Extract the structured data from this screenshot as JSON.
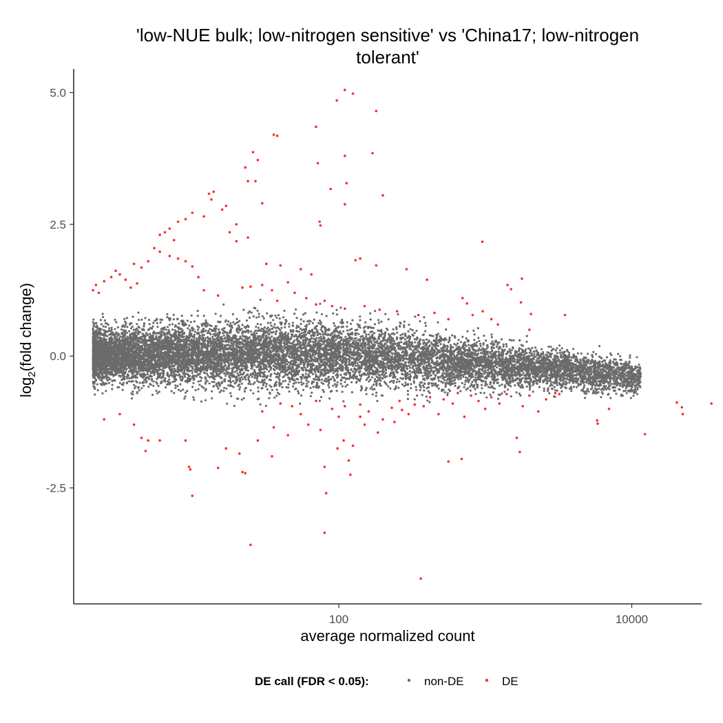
{
  "chart_data": {
    "type": "scatter",
    "title_line1": "'low-NUE bulk; low-nitrogen sensitive' vs 'China17; low-nitrogen",
    "title_line2": "tolerant'",
    "xlabel": "average normalized count",
    "ylabel_prefix": "log",
    "ylabel_sub": "2",
    "ylabel_suffix": "(fold change)",
    "x_scale": "log10",
    "xlim": [
      1.55,
      30000
    ],
    "ylim": [
      -4.7,
      5.45
    ],
    "x_ticks": [
      100,
      10000
    ],
    "x_tick_labels": [
      "100",
      "10000"
    ],
    "y_ticks": [
      5.0,
      2.5,
      0.0,
      -2.5
    ],
    "y_tick_labels": [
      "5.0",
      "2.5",
      "0.0",
      "-2.5"
    ],
    "grid": false,
    "legend": {
      "position": "bottom",
      "title": "DE call (FDR < 0.05):",
      "entries": [
        "non-DE",
        "DE"
      ]
    },
    "colors": {
      "non-DE": "#6b6b6b",
      "DE": "#ff2a2a"
    },
    "non_de_cloud": {
      "description_x_range": [
        2.1,
        11500
      ],
      "band_center": [
        [
          2.1,
          0.02
        ],
        [
          100,
          0.05
        ],
        [
          300,
          -0.05
        ],
        [
          2000,
          -0.2
        ],
        [
          11500,
          -0.4
        ]
      ],
      "band_halfwidth": [
        [
          2.1,
          0.55
        ],
        [
          30,
          0.75
        ],
        [
          300,
          0.65
        ],
        [
          2000,
          0.45
        ],
        [
          11500,
          0.35
        ]
      ],
      "approx_points": 12000
    },
    "de_points": {
      "series": [
        {
          "name": "DE",
          "points": [
            [
              110,
              5.05
            ],
            [
              125,
              4.98
            ],
            [
              97,
              4.85
            ],
            [
              180,
              4.65
            ],
            [
              70,
              4.35
            ],
            [
              36,
              4.2
            ],
            [
              38,
              4.18
            ],
            [
              26,
              3.87
            ],
            [
              110,
              3.8
            ],
            [
              170,
              3.85
            ],
            [
              28,
              3.72
            ],
            [
              72,
              3.66
            ],
            [
              23,
              3.58
            ],
            [
              113,
              3.28
            ],
            [
              24,
              3.32
            ],
            [
              27,
              3.32
            ],
            [
              88,
              3.17
            ],
            [
              13,
              3.08
            ],
            [
              14,
              3.12
            ],
            [
              200,
              3.05
            ],
            [
              13.5,
              2.97
            ],
            [
              17,
              2.85
            ],
            [
              16,
              2.78
            ],
            [
              30,
              2.9
            ],
            [
              110,
              2.88
            ],
            [
              10,
              2.72
            ],
            [
              9,
              2.6
            ],
            [
              12,
              2.65
            ],
            [
              8,
              2.55
            ],
            [
              74,
              2.55
            ],
            [
              75,
              2.48
            ],
            [
              20,
              2.5
            ],
            [
              7,
              2.42
            ],
            [
              6.5,
              2.35
            ],
            [
              18,
              2.35
            ],
            [
              6,
              2.3
            ],
            [
              7.5,
              2.2
            ],
            [
              955,
              2.17
            ],
            [
              20,
              2.18
            ],
            [
              24,
              2.25
            ],
            [
              5.5,
              2.05
            ],
            [
              6,
              1.98
            ],
            [
              7,
              1.9
            ],
            [
              8,
              1.85
            ],
            [
              9,
              1.8
            ],
            [
              10,
              1.7
            ],
            [
              5,
              1.8
            ],
            [
              4,
              1.75
            ],
            [
              4.5,
              1.68
            ],
            [
              3,
              1.62
            ],
            [
              3.2,
              1.55
            ],
            [
              2.8,
              1.5
            ],
            [
              2.5,
              1.42
            ],
            [
              2.2,
              1.35
            ],
            [
              3.5,
              1.45
            ],
            [
              130,
              1.82
            ],
            [
              140,
              1.85
            ],
            [
              180,
              1.72
            ],
            [
              290,
              1.65
            ],
            [
              400,
              1.45
            ],
            [
              1780,
              1.47
            ],
            [
              1500,
              1.27
            ],
            [
              1420,
              1.35
            ],
            [
              1750,
              1.02
            ],
            [
              2050,
              0.8
            ],
            [
              3500,
              0.78
            ],
            [
              2000,
              0.5
            ],
            [
              32,
              1.75
            ],
            [
              40,
              1.72
            ],
            [
              55,
              1.65
            ],
            [
              65,
              1.55
            ],
            [
              45,
              1.4
            ],
            [
              30,
              1.35
            ],
            [
              25,
              1.32
            ],
            [
              22,
              1.3
            ],
            [
              35,
              1.25
            ],
            [
              50,
              1.2
            ],
            [
              60,
              1.1
            ],
            [
              80,
              1.05
            ],
            [
              90,
              0.95
            ],
            [
              110,
              0.9
            ],
            [
              150,
              0.95
            ],
            [
              190,
              0.88
            ],
            [
              250,
              0.85
            ],
            [
              350,
              0.78
            ],
            [
              450,
              0.82
            ],
            [
              560,
              0.7
            ],
            [
              700,
              1.1
            ],
            [
              750,
              1.0
            ],
            [
              820,
              0.78
            ],
            [
              960,
              0.85
            ],
            [
              1100,
              0.7
            ],
            [
              1220,
              0.6
            ],
            [
              15,
              1.15
            ],
            [
              12,
              1.25
            ],
            [
              2.1,
              1.25
            ],
            [
              2.3,
              1.2
            ],
            [
              3.8,
              1.3
            ],
            [
              4.2,
              1.38
            ],
            [
              11,
              1.5
            ],
            [
              38,
              1.05
            ],
            [
              70,
              0.98
            ],
            [
              2.5,
              -1.2
            ],
            [
              3.2,
              -1.1
            ],
            [
              4,
              -1.3
            ],
            [
              4.5,
              -1.55
            ],
            [
              5,
              -1.6
            ],
            [
              4.8,
              -1.8
            ],
            [
              6,
              -1.6
            ],
            [
              9,
              -1.6
            ],
            [
              9.5,
              -2.1
            ],
            [
              9.7,
              -2.15
            ],
            [
              10,
              -2.65
            ],
            [
              15,
              -2.12
            ],
            [
              17,
              -1.75
            ],
            [
              21,
              -1.85
            ],
            [
              22,
              -2.2
            ],
            [
              28,
              -1.6
            ],
            [
              23,
              -2.22
            ],
            [
              25,
              -3.58
            ],
            [
              35,
              -1.9
            ],
            [
              80,
              -2.1
            ],
            [
              82,
              -2.6
            ],
            [
              80,
              -3.35
            ],
            [
              98,
              -1.75
            ],
            [
              108,
              -1.6
            ],
            [
              117,
              -1.98
            ],
            [
              120,
              -2.25
            ],
            [
              125,
              -1.7
            ],
            [
              185,
              -1.45
            ],
            [
              363,
              -4.22
            ],
            [
              560,
              -2.0
            ],
            [
              690,
              -1.95
            ],
            [
              1720,
              -1.82
            ],
            [
              1640,
              -1.55
            ],
            [
              2300,
              -1.05
            ],
            [
              3200,
              -0.72
            ],
            [
              5800,
              -1.22
            ],
            [
              5850,
              -1.28
            ],
            [
              12300,
              -1.48
            ],
            [
              20300,
              -0.88
            ],
            [
              22000,
              -0.97
            ],
            [
              22300,
              -1.1
            ],
            [
              35000,
              -0.9
            ],
            [
              30,
              -1.05
            ],
            [
              40,
              -0.9
            ],
            [
              55,
              -1.1
            ],
            [
              62,
              -1.3
            ],
            [
              70,
              -0.85
            ],
            [
              90,
              -1.0
            ],
            [
              100,
              -1.15
            ],
            [
              110,
              -0.95
            ],
            [
              140,
              -0.92
            ],
            [
              160,
              -1.05
            ],
            [
              200,
              -1.2
            ],
            [
              230,
              -0.98
            ],
            [
              260,
              -0.85
            ],
            [
              300,
              -1.1
            ],
            [
              330,
              -0.92
            ],
            [
              380,
              -0.95
            ],
            [
              420,
              -0.78
            ],
            [
              480,
              -1.1
            ],
            [
              520,
              -0.82
            ],
            [
              600,
              -0.9
            ],
            [
              650,
              -0.7
            ],
            [
              720,
              -1.15
            ],
            [
              800,
              -0.75
            ],
            [
              900,
              -0.85
            ],
            [
              1000,
              -1.0
            ],
            [
              1100,
              -0.78
            ],
            [
              1250,
              -0.9
            ],
            [
              1400,
              -0.72
            ],
            [
              1800,
              -0.95
            ],
            [
              2000,
              -0.75
            ],
            [
              2600,
              -0.82
            ],
            [
              3000,
              -0.7
            ],
            [
              36,
              -1.35
            ],
            [
              45,
              -1.5
            ],
            [
              75,
              -1.4
            ],
            [
              150,
              -1.3
            ],
            [
              240,
              -1.25
            ],
            [
              48,
              -0.95
            ],
            [
              140,
              -1.15
            ],
            [
              270,
              -1.02
            ],
            [
              7000,
              -1.0
            ]
          ]
        }
      ]
    }
  }
}
